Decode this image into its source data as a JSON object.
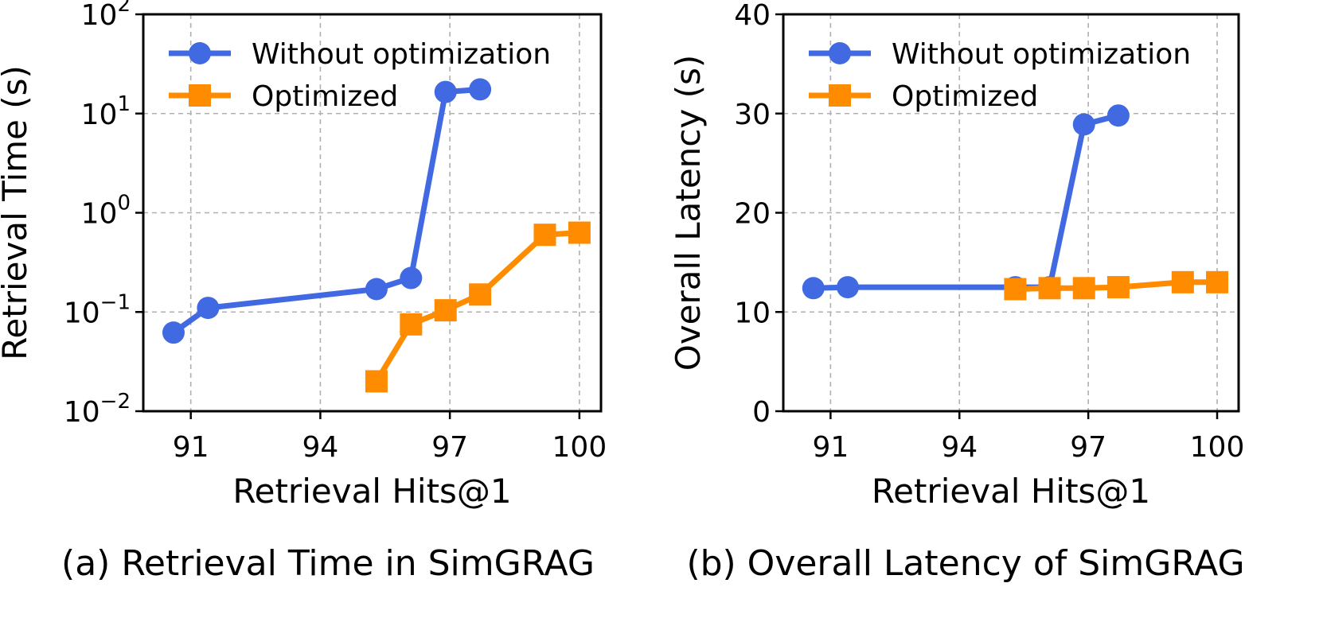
{
  "colors": {
    "without": "#4169e1",
    "optimized": "#ff8c00",
    "grid": "#b0b0b0",
    "axis": "#000000"
  },
  "chart_data": [
    {
      "type": "line",
      "caption": "(a) Retrieval Time in SimGRAG",
      "xlabel": "Retrieval Hits@1",
      "ylabel": "Retrieval Time (s)",
      "yscale": "log",
      "xlim": [
        89.9,
        100.5
      ],
      "ylim": [
        0.01,
        100
      ],
      "xticks": [
        91,
        94,
        97,
        100
      ],
      "yticks": [
        {
          "value": 0.01,
          "base": "10",
          "exp": "−2"
        },
        {
          "value": 0.1,
          "base": "10",
          "exp": "−1"
        },
        {
          "value": 1,
          "base": "10",
          "exp": "0"
        },
        {
          "value": 10,
          "base": "10",
          "exp": "1"
        },
        {
          "value": 100,
          "base": "10",
          "exp": "2"
        }
      ],
      "grid": true,
      "legend": "top-left",
      "series": [
        {
          "name": "Without optimization",
          "marker": "circle",
          "colorKey": "without",
          "x": [
            90.6,
            91.4,
            95.3,
            96.1,
            96.9,
            97.7
          ],
          "y": [
            0.062,
            0.11,
            0.17,
            0.22,
            16.5,
            17.5
          ]
        },
        {
          "name": "Optimized",
          "marker": "square",
          "colorKey": "optimized",
          "x": [
            95.3,
            96.1,
            96.9,
            97.7,
            99.2,
            100.0
          ],
          "y": [
            0.02,
            0.075,
            0.104,
            0.15,
            0.6,
            0.63
          ]
        }
      ]
    },
    {
      "type": "line",
      "caption": "(b) Overall Latency of SimGRAG",
      "xlabel": "Retrieval Hits@1",
      "ylabel": "Overall Latency (s)",
      "yscale": "linear",
      "xlim": [
        89.9,
        100.5
      ],
      "ylim": [
        0,
        40
      ],
      "xticks": [
        91,
        94,
        97,
        100
      ],
      "yticks": [
        {
          "value": 0,
          "label": "0"
        },
        {
          "value": 10,
          "label": "10"
        },
        {
          "value": 20,
          "label": "20"
        },
        {
          "value": 30,
          "label": "30"
        },
        {
          "value": 40,
          "label": "40"
        }
      ],
      "grid": true,
      "legend": "top-left",
      "series": [
        {
          "name": "Without optimization",
          "marker": "circle",
          "colorKey": "without",
          "x": [
            90.6,
            91.4,
            95.3,
            96.1,
            96.9,
            97.7
          ],
          "y": [
            12.4,
            12.5,
            12.5,
            12.5,
            28.9,
            29.8
          ]
        },
        {
          "name": "Optimized",
          "marker": "square",
          "colorKey": "optimized",
          "x": [
            95.3,
            96.1,
            96.9,
            97.7,
            99.2,
            100.0
          ],
          "y": [
            12.3,
            12.4,
            12.4,
            12.5,
            13.0,
            13.0
          ]
        }
      ]
    }
  ]
}
